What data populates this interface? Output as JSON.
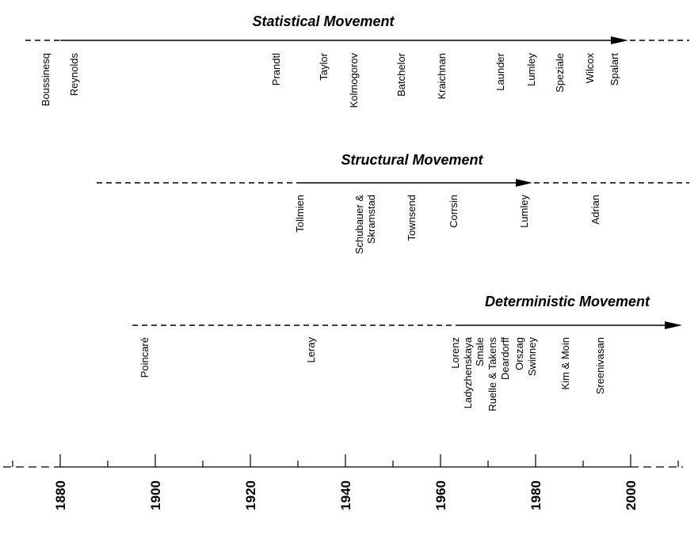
{
  "movements": {
    "statistical": {
      "title": "Statistical Movement",
      "names": {
        "boussinesq": "Boussinesq",
        "reynolds": "Reynolds",
        "prandtl": "Prandtl",
        "taylor": "Taylor",
        "kolmogorov": "Kolmogorov",
        "batchelor": "Batchelor",
        "kraichnan": "Kraichnan",
        "launder": "Launder",
        "lumley": "Lumley",
        "speziale": "Speziale",
        "wilcox": "Wilcox",
        "spalart": "Spalart"
      }
    },
    "structural": {
      "title": "Structural Movement",
      "names": {
        "tollmien": "Tollmien",
        "schubauer1": "Schubauer &",
        "schubauer2": "Skramstad",
        "townsend": "Townsend",
        "corrsin": "Corrsin",
        "lumley": "Lumley",
        "adrian": "Adrian"
      }
    },
    "deterministic": {
      "title": "Deterministic Movement",
      "names": {
        "poincare": "Poincaré",
        "leray": "Leray",
        "lorenz": "Lorenz",
        "ladyzhenskaya": "Ladyzhenskaya",
        "smale": "Smale",
        "ruelle": "Ruelle & Takens",
        "deardorff": "Deardorff",
        "orszag": "Orszag",
        "swinney": "Swinney",
        "kim": "Kim & Moin",
        "sreenivasan": "Sreenivasan"
      }
    }
  },
  "axis": {
    "years": [
      "1880",
      "1900",
      "1920",
      "1940",
      "1960",
      "1980",
      "2000"
    ]
  }
}
